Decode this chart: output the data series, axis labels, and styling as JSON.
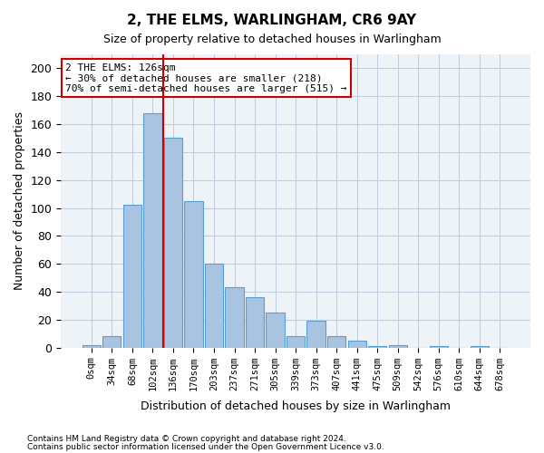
{
  "title": "2, THE ELMS, WARLINGHAM, CR6 9AY",
  "subtitle": "Size of property relative to detached houses in Warlingham",
  "xlabel": "Distribution of detached houses by size in Warlingham",
  "ylabel": "Number of detached properties",
  "footnote1": "Contains HM Land Registry data © Crown copyright and database right 2024.",
  "footnote2": "Contains public sector information licensed under the Open Government Licence v3.0.",
  "bins": [
    "0sqm",
    "34sqm",
    "68sqm",
    "102sqm",
    "136sqm",
    "170sqm",
    "203sqm",
    "237sqm",
    "271sqm",
    "305sqm",
    "339sqm",
    "373sqm",
    "407sqm",
    "441sqm",
    "475sqm",
    "509sqm",
    "542sqm",
    "576sqm",
    "610sqm",
    "644sqm",
    "678sqm"
  ],
  "values": [
    2,
    8,
    102,
    168,
    150,
    105,
    60,
    43,
    36,
    25,
    8,
    19,
    8,
    5,
    1,
    2,
    0,
    1,
    0,
    1,
    0
  ],
  "bar_color": "#a8c4e0",
  "bar_edge_color": "#5a9fd4",
  "grid_color": "#c0cfe0",
  "ylim": [
    0,
    210
  ],
  "yticks": [
    0,
    20,
    40,
    60,
    80,
    100,
    120,
    140,
    160,
    180,
    200
  ],
  "annotation_title": "2 THE ELMS: 126sqm",
  "annotation_line1": "← 30% of detached houses are smaller (218)",
  "annotation_line2": "70% of semi-detached houses are larger (515) →",
  "vline_color": "#cc0000",
  "vline_x": 3.5,
  "annotation_box_color": "#ffffff",
  "annotation_box_edge": "#cc0000",
  "background_color": "#ffffff",
  "plot_bg_color": "#eef3f8"
}
